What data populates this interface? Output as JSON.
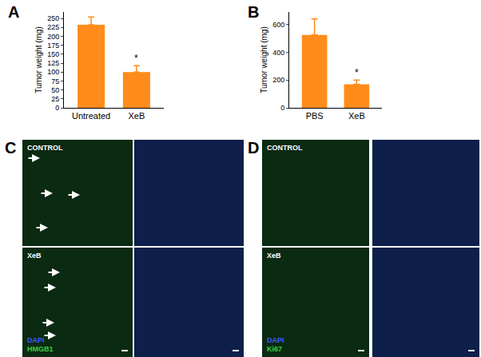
{
  "chart_data": [
    {
      "type": "bar",
      "label": "A",
      "y_label": "Tumor weight (mg)",
      "categories": [
        "Untreated",
        "XeB"
      ],
      "values": [
        232,
        100
      ],
      "errors": [
        22,
        18
      ],
      "color": "#ff8c1a",
      "ylim": [
        0,
        268
      ],
      "yticks": [
        0,
        25,
        50,
        75,
        100,
        125,
        150,
        175,
        200,
        225,
        250
      ],
      "annotations": [
        {
          "category": "XeB",
          "text": "*"
        }
      ]
    },
    {
      "type": "bar",
      "label": "B",
      "y_label": "Tumor weight (mg)",
      "categories": [
        "PBS",
        "XeB"
      ],
      "values": [
        525,
        170
      ],
      "errors": [
        115,
        30
      ],
      "color": "#ff8c1a",
      "ylim": [
        0,
        690
      ],
      "yticks": [
        0,
        200,
        400,
        600
      ],
      "annotations": [
        {
          "category": "XeB",
          "text": "*"
        }
      ]
    }
  ],
  "images": [
    {
      "label": "C",
      "rows": [
        "CONTROL",
        "XeB"
      ],
      "stains": [
        {
          "text": "DAPI",
          "color": "#3d5bff"
        },
        {
          "text": "HMGB1",
          "color": "#3cd13c"
        }
      ]
    },
    {
      "label": "D",
      "rows": [
        "CONTROL",
        "XeB"
      ],
      "stains": [
        {
          "text": "DAPI",
          "color": "#3d5bff"
        },
        {
          "text": "Ki67",
          "color": "#3cd13c"
        }
      ]
    }
  ]
}
